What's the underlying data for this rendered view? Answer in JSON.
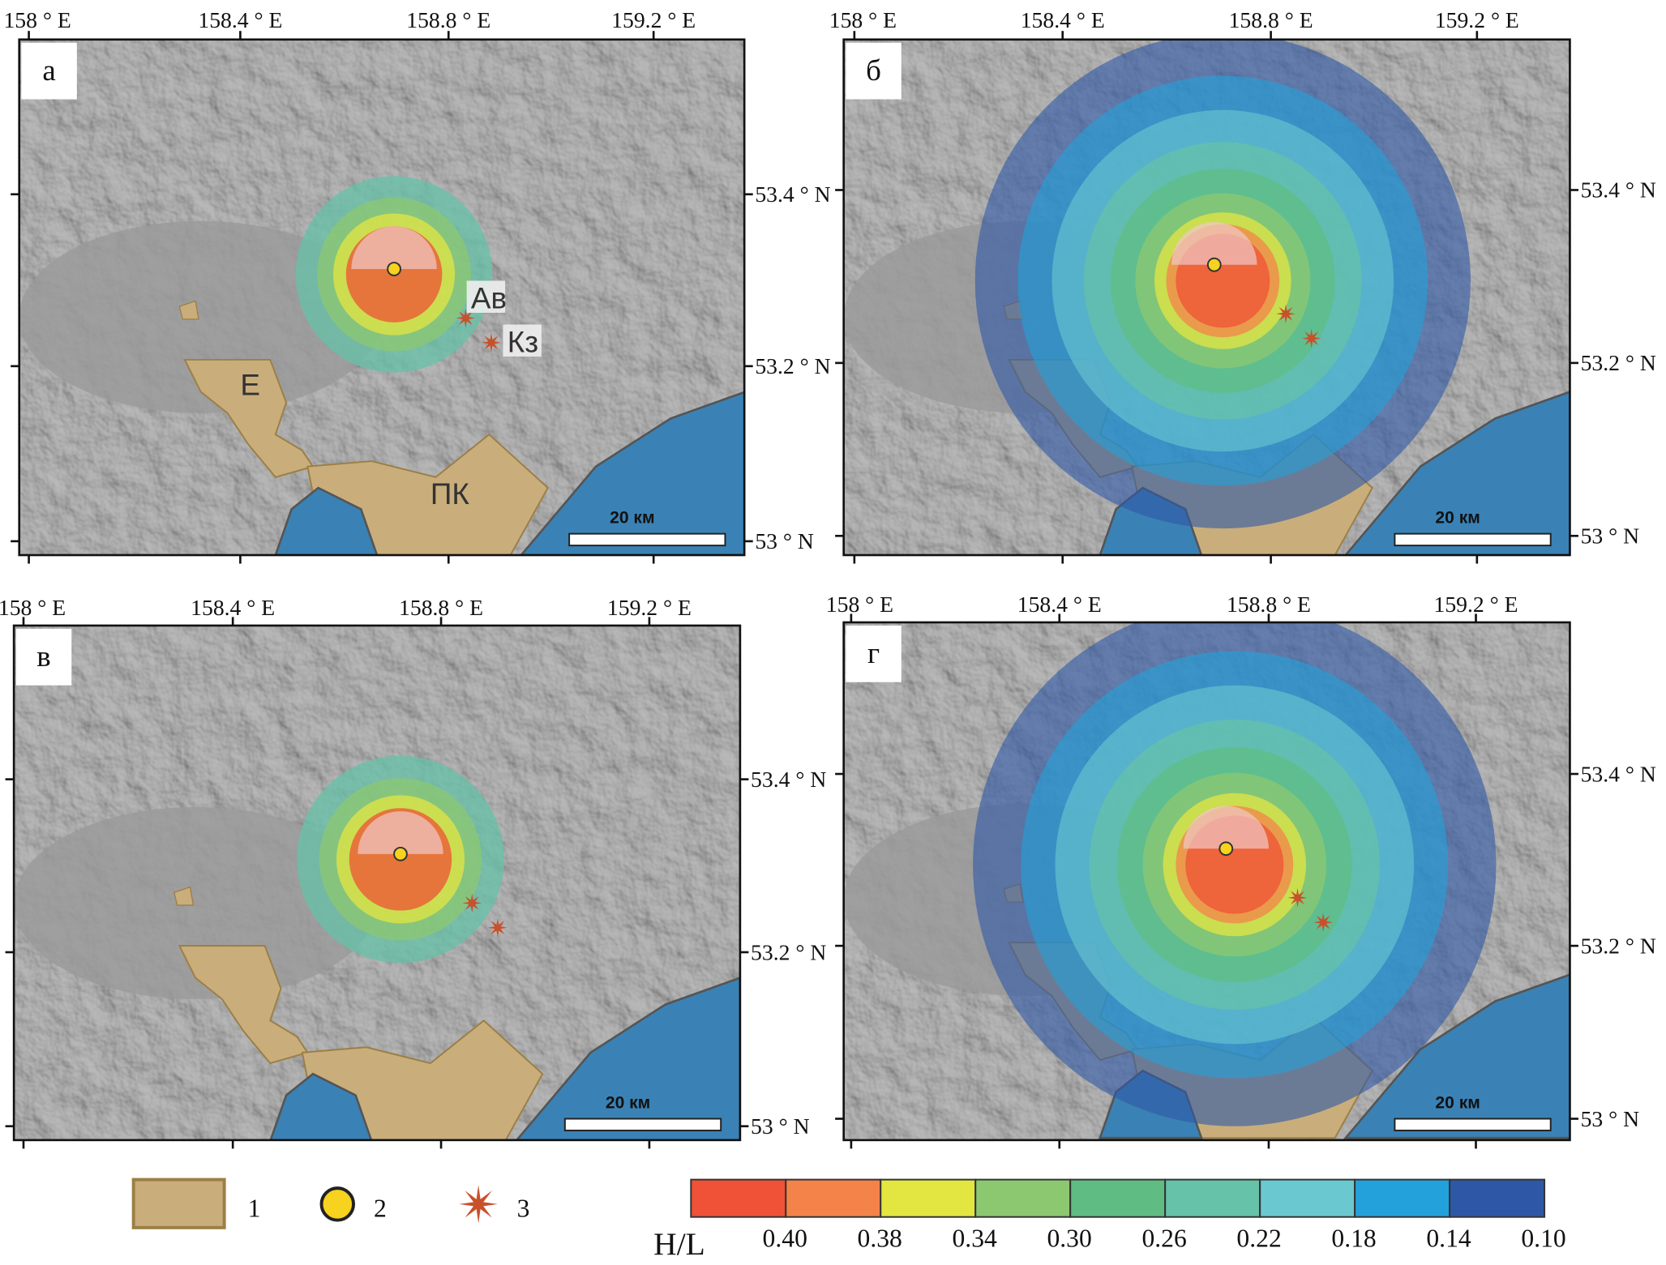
{
  "panels": [
    {
      "letter": "а",
      "top_ticks": [
        "158 ° E",
        "158.4 ° E",
        "158.8 ° E",
        "159.2 ° E"
      ],
      "right_ticks": [
        "53.4 ° N",
        "53.2 ° N",
        "53 ° N"
      ],
      "scale_label": "20 км",
      "place_labels": [
        "Е",
        "ПК",
        "Ав",
        "Кз"
      ]
    },
    {
      "letter": "б",
      "top_ticks": [
        "158 ° E",
        "158.4 ° E",
        "158.8 ° E",
        "159.2 ° E"
      ],
      "right_ticks": [
        "53.4 ° N",
        "53.2 ° N",
        "53 ° N"
      ],
      "scale_label": "20 км"
    },
    {
      "letter": "в",
      "top_ticks": [
        "158 ° E",
        "158.4 ° E",
        "158.8 ° E",
        "159.2 ° E"
      ],
      "right_ticks": [
        "53.4 ° N",
        "53.2 ° N",
        "53 ° N"
      ],
      "scale_label": "20 км"
    },
    {
      "letter": "г",
      "top_ticks": [
        "158 ° E",
        "158.4 ° E",
        "158.8 ° E",
        "159.2 ° E"
      ],
      "right_ticks": [
        "53.4 ° N",
        "53.2 ° N",
        "53 ° N"
      ],
      "scale_label": "20 км"
    }
  ],
  "legend": {
    "items": [
      {
        "label": "1",
        "symbol": "settlement-area",
        "color": "#c9ae7c"
      },
      {
        "label": "2",
        "symbol": "eruption-center",
        "color": "#f7d21e"
      },
      {
        "label": "3",
        "symbol": "volcano-star",
        "color": "#c8502a"
      }
    ],
    "colorbar": {
      "title": "H/L",
      "values": [
        "0.40",
        "0.38",
        "0.34",
        "0.30",
        "0.26",
        "0.22",
        "0.18",
        "0.14",
        "0.10"
      ],
      "colors": [
        "#ef5236",
        "#f4834a",
        "#e3e641",
        "#8cc870",
        "#5fbd84",
        "#66c2a8",
        "#6ac8d0",
        "#22a1db",
        "#2e58a6"
      ]
    }
  },
  "colors": {
    "terrain": "#9b9b9b",
    "sea": "#3a82b5",
    "settlement": "#c9ae7c"
  }
}
